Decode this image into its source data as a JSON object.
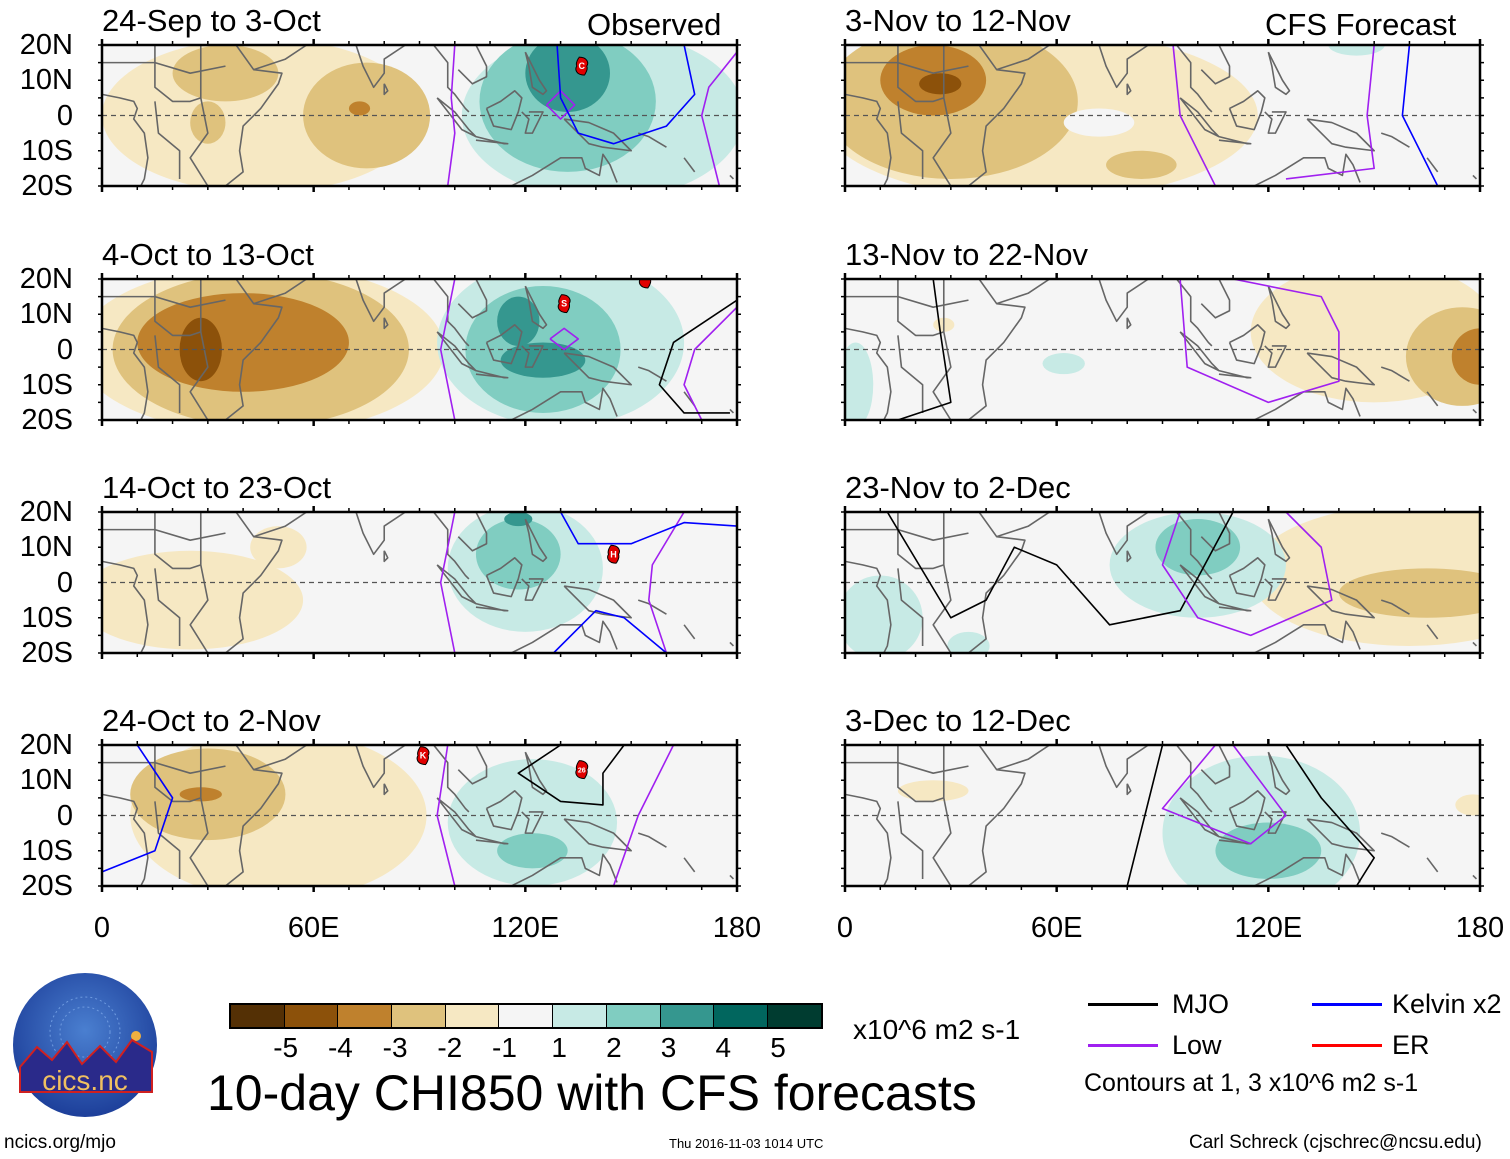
{
  "chart_data": {
    "type": "heatmap",
    "title": "10-day CHI850 with CFS forecasts",
    "units": "x10^6 m2 s-1",
    "contour_note": "Contours at 1, 3 x10^6 m2 s-1",
    "yticks": [
      "20N",
      "10N",
      "0",
      "10S",
      "20S"
    ],
    "xticks": [
      "0",
      "60E",
      "120E",
      "180"
    ],
    "lon_range": [
      0,
      180
    ],
    "lat_range": [
      -20,
      20
    ],
    "left_label": "Observed",
    "right_label": "CFS Forecast",
    "colorbar": {
      "labels": [
        "-5",
        "-4",
        "-3",
        "-2",
        "-1",
        "1",
        "2",
        "3",
        "4",
        "5"
      ],
      "colors": [
        "#543005",
        "#8c510a",
        "#bf812d",
        "#dfc27d",
        "#f6e8c3",
        "#f5f5f5",
        "#c7eae5",
        "#80cdc1",
        "#35978f",
        "#01665e",
        "#003c30"
      ]
    },
    "legend": [
      {
        "label": "MJO",
        "color": "#000000"
      },
      {
        "label": "Kelvin x2",
        "color": "#0000ff"
      },
      {
        "label": "Low",
        "color": "#a020f0"
      },
      {
        "label": "ER",
        "color": "#ff0000"
      }
    ],
    "panels": [
      {
        "title": "24-Sep to 3-Oct",
        "column": "left",
        "blobs": [
          [
            45,
            0,
            45,
            22,
            -1
          ],
          [
            75,
            0,
            18,
            15,
            -2
          ],
          [
            35,
            12,
            15,
            8,
            -2
          ],
          [
            30,
            -2,
            5,
            6,
            -2
          ],
          [
            73,
            2,
            3,
            2,
            -3
          ],
          [
            142,
            0,
            40,
            24,
            1
          ],
          [
            132,
            4,
            25,
            20,
            2
          ],
          [
            132,
            12,
            12,
            11,
            3
          ]
        ],
        "lines": [
          {
            "t": "Low",
            "p": [
              [
                100,
                20
              ],
              [
                99,
                5
              ],
              [
                100,
                -5
              ],
              [
                98,
                -20
              ]
            ]
          },
          {
            "t": "Low",
            "p": [
              [
                126,
                3
              ],
              [
                130,
                7
              ],
              [
                134,
                3
              ],
              [
                130,
                -1
              ],
              [
                126,
                3
              ]
            ]
          },
          {
            "t": "Low",
            "p": [
              [
                180,
                18
              ],
              [
                172,
                8
              ],
              [
                170,
                0
              ],
              [
                175,
                -20
              ]
            ]
          },
          {
            "t": "Kelvin",
            "p": [
              [
                129,
                20
              ],
              [
                130,
                5
              ],
              [
                135,
                -5
              ],
              [
                145,
                -8
              ],
              [
                160,
                -3
              ],
              [
                168,
                6
              ],
              [
                165,
                20
              ]
            ]
          }
        ],
        "storms": [
          {
            "lon": 136,
            "lat": 14,
            "label": "C"
          }
        ]
      },
      {
        "title": "4-Oct to 13-Oct",
        "column": "left",
        "blobs": [
          [
            45,
            0,
            52,
            24,
            -1
          ],
          [
            45,
            0,
            42,
            22,
            -2
          ],
          [
            40,
            2,
            30,
            14,
            -3
          ],
          [
            28,
            0,
            6,
            9,
            -4
          ],
          [
            130,
            2,
            35,
            24,
            1
          ],
          [
            125,
            0,
            22,
            18,
            2
          ],
          [
            125,
            -3,
            12,
            5,
            3
          ],
          [
            118,
            8,
            6,
            7,
            3
          ]
        ],
        "lines": [
          {
            "t": "Low",
            "p": [
              [
                100,
                20
              ],
              [
                96,
                0
              ],
              [
                100,
                -20
              ]
            ]
          },
          {
            "t": "Low",
            "p": [
              [
                127,
                3
              ],
              [
                131,
                6
              ],
              [
                135,
                3
              ],
              [
                131,
                0
              ],
              [
                127,
                3
              ]
            ]
          },
          {
            "t": "Low",
            "p": [
              [
                180,
                12
              ],
              [
                168,
                0
              ],
              [
                165,
                -10
              ],
              [
                170,
                -20
              ]
            ]
          },
          {
            "t": "MJO",
            "p": [
              [
                180,
                14
              ],
              [
                162,
                2
              ],
              [
                158,
                -10
              ],
              [
                165,
                -18
              ],
              [
                178,
                -18
              ]
            ]
          }
        ],
        "storms": [
          {
            "lon": 131,
            "lat": 13,
            "label": "S"
          },
          {
            "lon": 154,
            "lat": 20,
            "label": ""
          }
        ]
      },
      {
        "title": "14-Oct to 23-Oct",
        "column": "left",
        "blobs": [
          [
            25,
            -5,
            32,
            14,
            -1
          ],
          [
            50,
            10,
            8,
            6,
            -1
          ],
          [
            120,
            4,
            22,
            18,
            1
          ],
          [
            118,
            8,
            12,
            10,
            2
          ],
          [
            118,
            18,
            4,
            2,
            3
          ]
        ],
        "lines": [
          {
            "t": "Low",
            "p": [
              [
                100,
                20
              ],
              [
                96,
                0
              ],
              [
                100,
                -20
              ]
            ]
          },
          {
            "t": "Low",
            "p": [
              [
                165,
                20
              ],
              [
                156,
                5
              ],
              [
                155,
                -5
              ],
              [
                160,
                -20
              ]
            ]
          },
          {
            "t": "Kelvin",
            "p": [
              [
                130,
                20
              ],
              [
                135,
                11
              ],
              [
                150,
                11
              ],
              [
                165,
                17
              ],
              [
                180,
                16
              ]
            ]
          },
          {
            "t": "Kelvin",
            "p": [
              [
                128,
                -20
              ],
              [
                140,
                -8
              ],
              [
                148,
                -10
              ],
              [
                160,
                -20
              ]
            ]
          }
        ],
        "storms": [
          {
            "lon": 145,
            "lat": 8,
            "label": "H"
          }
        ]
      },
      {
        "title": "24-Oct to 2-Nov",
        "column": "left",
        "blobs": [
          [
            50,
            0,
            42,
            24,
            -1
          ],
          [
            30,
            6,
            22,
            13,
            -2
          ],
          [
            28,
            6,
            6,
            2,
            -3
          ],
          [
            122,
            -2,
            24,
            18,
            1
          ],
          [
            122,
            -10,
            10,
            5,
            2
          ]
        ],
        "lines": [
          {
            "t": "Low",
            "p": [
              [
                98,
                20
              ],
              [
                95,
                0
              ],
              [
                100,
                -20
              ]
            ]
          },
          {
            "t": "Low",
            "p": [
              [
                162,
                20
              ],
              [
                152,
                0
              ],
              [
                145,
                -20
              ]
            ]
          },
          {
            "t": "MJO",
            "p": [
              [
                130,
                20
              ],
              [
                118,
                12
              ],
              [
                130,
                4
              ],
              [
                142,
                3
              ],
              [
                142,
                12
              ],
              [
                148,
                20
              ]
            ]
          },
          {
            "t": "Kelvin",
            "p": [
              [
                10,
                20
              ],
              [
                20,
                5
              ],
              [
                15,
                -10
              ],
              [
                0,
                -16
              ]
            ]
          }
        ],
        "storms": [
          {
            "lon": 91,
            "lat": 17,
            "label": "K"
          },
          {
            "lon": 136,
            "lat": 13,
            "label": "26"
          }
        ]
      },
      {
        "title": "3-Nov to 12-Nov",
        "column": "right",
        "blobs": [
          [
            55,
            0,
            62,
            24,
            -1
          ],
          [
            30,
            4,
            36,
            22,
            -2
          ],
          [
            25,
            10,
            15,
            10,
            -3
          ],
          [
            27,
            9,
            6,
            3,
            -4
          ],
          [
            72,
            -2,
            10,
            4,
            0
          ],
          [
            84,
            -14,
            10,
            4,
            -2
          ],
          [
            145,
            20,
            8,
            3,
            1
          ]
        ],
        "lines": [
          {
            "t": "Low",
            "p": [
              [
                93,
                20
              ],
              [
                95,
                0
              ],
              [
                105,
                -20
              ]
            ]
          },
          {
            "t": "Low",
            "p": [
              [
                150,
                20
              ],
              [
                148,
                0
              ],
              [
                150,
                -15
              ],
              [
                125,
                -18
              ]
            ]
          },
          {
            "t": "Kelvin",
            "p": [
              [
                160,
                20
              ],
              [
                158,
                0
              ],
              [
                168,
                -20
              ]
            ]
          }
        ],
        "storms": []
      },
      {
        "title": "13-Nov to 22-Nov",
        "column": "right",
        "blobs": [
          [
            150,
            5,
            35,
            20,
            -1
          ],
          [
            175,
            -2,
            16,
            14,
            -2
          ],
          [
            180,
            -2,
            8,
            8,
            -3
          ],
          [
            62,
            -4,
            6,
            3,
            1
          ],
          [
            3,
            -10,
            5,
            12,
            1
          ],
          [
            28,
            7,
            3,
            2,
            -1
          ]
        ],
        "lines": [
          {
            "t": "Low",
            "p": [
              [
                95,
                20
              ],
              [
                97,
                -5
              ],
              [
                120,
                -15
              ],
              [
                140,
                -9
              ],
              [
                140,
                5
              ],
              [
                135,
                15
              ],
              [
                110,
                20
              ]
            ]
          },
          {
            "t": "MJO",
            "p": [
              [
                25,
                20
              ],
              [
                27,
                5
              ],
              [
                30,
                -15
              ],
              [
                15,
                -20
              ]
            ]
          }
        ],
        "storms": []
      },
      {
        "title": "23-Nov to 2-Dec",
        "column": "right",
        "blobs": [
          [
            160,
            2,
            45,
            20,
            -1
          ],
          [
            165,
            -3,
            25,
            7,
            -2
          ],
          [
            100,
            5,
            25,
            15,
            1
          ],
          [
            100,
            10,
            12,
            8,
            2
          ],
          [
            10,
            -10,
            12,
            12,
            1
          ],
          [
            35,
            -18,
            6,
            4,
            1
          ]
        ],
        "lines": [
          {
            "t": "MJO",
            "p": [
              [
                12,
                20
              ],
              [
                30,
                -10
              ],
              [
                40,
                -5
              ],
              [
                48,
                10
              ],
              [
                60,
                5
              ],
              [
                75,
                -12
              ],
              [
                95,
                -8
              ],
              [
                110,
                20
              ]
            ]
          },
          {
            "t": "Low",
            "p": [
              [
                95,
                20
              ],
              [
                90,
                5
              ],
              [
                100,
                -10
              ],
              [
                115,
                -15
              ],
              [
                138,
                -5
              ],
              [
                135,
                10
              ],
              [
                125,
                20
              ]
            ]
          }
        ],
        "storms": []
      },
      {
        "title": "3-Dec to 12-Dec",
        "column": "right",
        "blobs": [
          [
            118,
            -5,
            28,
            22,
            1
          ],
          [
            120,
            -10,
            15,
            8,
            2
          ],
          [
            25,
            7,
            10,
            3,
            -1
          ],
          [
            178,
            3,
            5,
            3,
            -1
          ]
        ],
        "lines": [
          {
            "t": "MJO",
            "p": [
              [
                90,
                20
              ],
              [
                85,
                0
              ],
              [
                80,
                -20
              ],
              [
                145,
                -20
              ],
              [
                150,
                -12
              ],
              [
                135,
                5
              ],
              [
                125,
                20
              ]
            ]
          },
          {
            "t": "Low",
            "p": [
              [
                105,
                20
              ],
              [
                90,
                2
              ],
              [
                115,
                -8
              ],
              [
                125,
                0
              ],
              [
                110,
                20
              ]
            ]
          }
        ],
        "storms": []
      }
    ]
  },
  "logo": {
    "text": "cics.nc",
    "ring": "Cooperative Institute for Climate and Satellites"
  },
  "footer": {
    "url": "ncics.org/mjo",
    "timestamp": "Thu 2016-11-03 1014 UTC",
    "author": "Carl Schreck (cjschrec@ncsu.edu)"
  }
}
